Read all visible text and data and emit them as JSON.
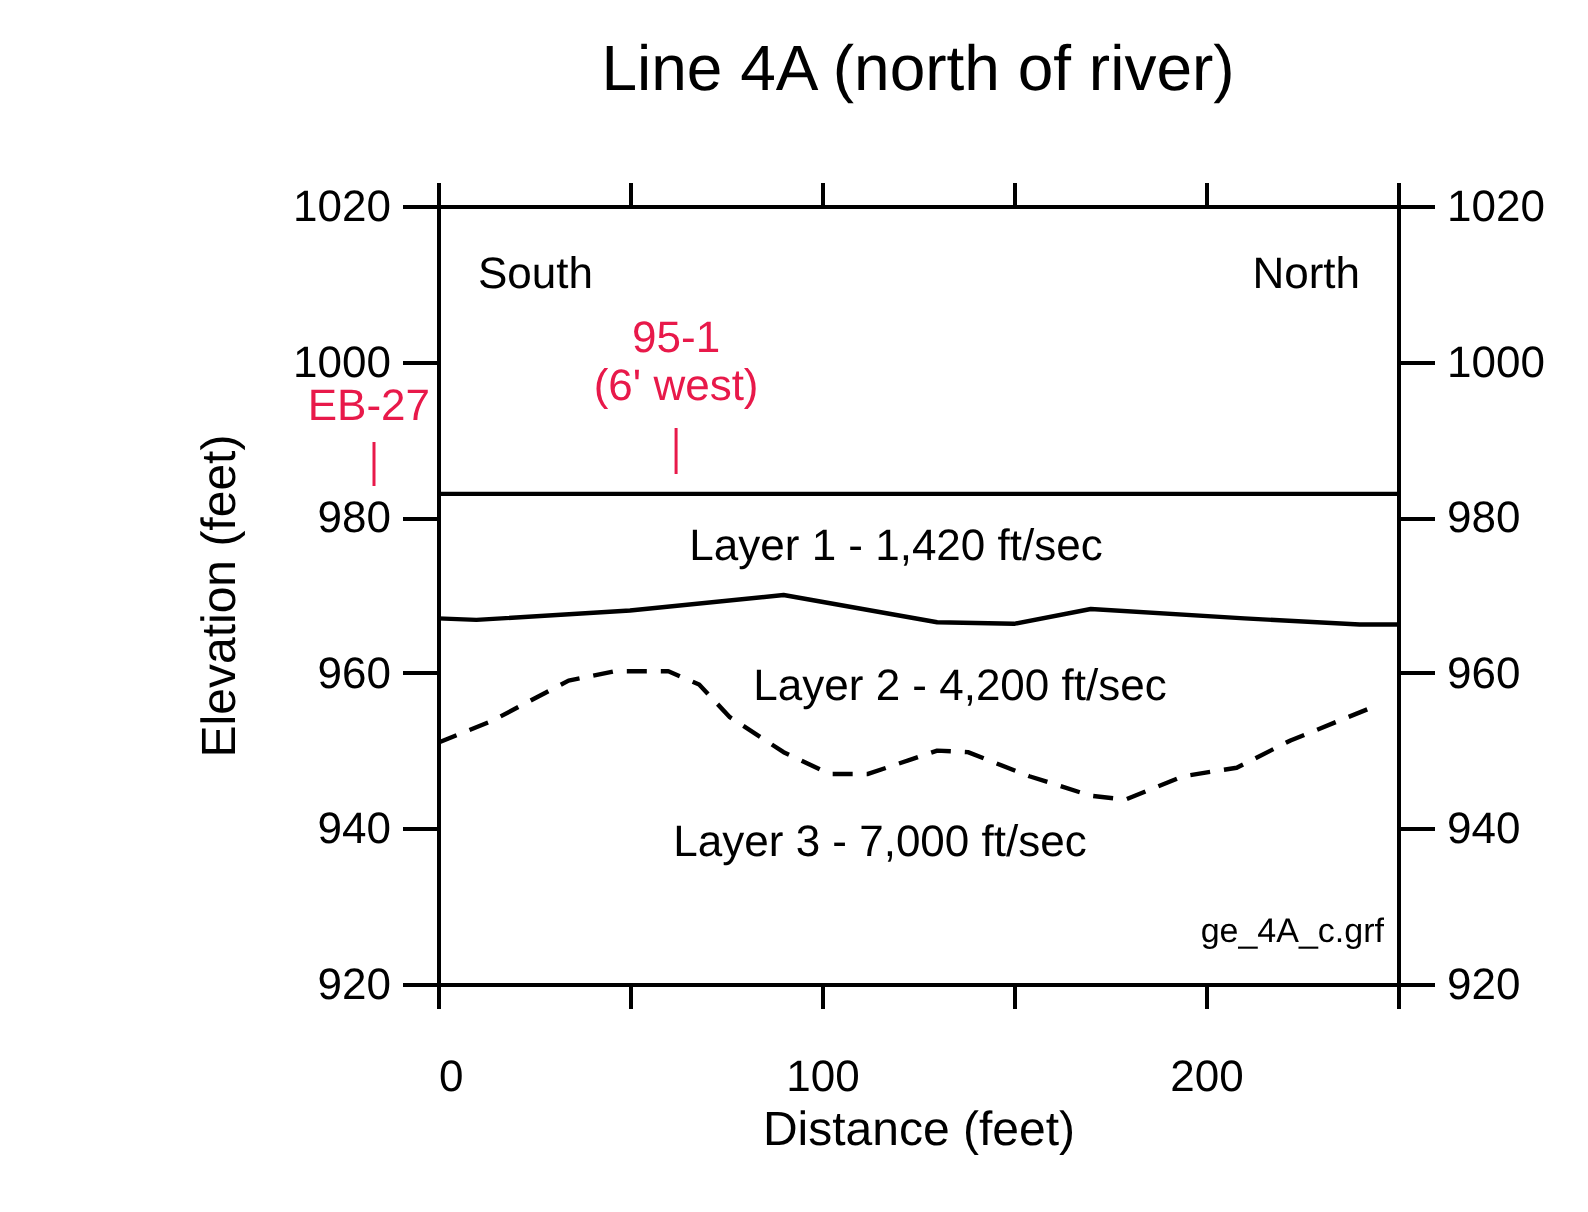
{
  "chart_data": {
    "type": "line",
    "title": "Line 4A (north of river)",
    "xlabel": "Distance (feet)",
    "ylabel": "Elevation (feet)",
    "series": [
      {
        "color": "#000000",
        "line_style": "solid",
        "x": [
          0,
          250
        ],
        "values": [
          983,
          983
        ]
      },
      {
        "color": "#000000",
        "line_style": "solid",
        "x": [
          0,
          10,
          50,
          90,
          130,
          150,
          170,
          210,
          240,
          250
        ],
        "values": [
          967,
          966.8,
          968,
          970,
          966.5,
          966.3,
          968.2,
          967,
          966.2,
          966.2
        ]
      },
      {
        "color": "#000000",
        "line_style": "dashed",
        "x": [
          0,
          14,
          34,
          46,
          60,
          68,
          76,
          90,
          102,
          112,
          130,
          138,
          154,
          170,
          179,
          194,
          208,
          222,
          242
        ],
        "values": [
          951,
          953.8,
          959,
          960.2,
          960.2,
          958.5,
          954.3,
          949.8,
          947,
          947,
          950,
          949.8,
          946.7,
          944.2,
          943.7,
          946.7,
          947.8,
          951.3,
          955.3
        ]
      }
    ],
    "xlim": [
      0,
      250
    ],
    "xticks": [
      0,
      {
        "value": 50,
        "label": null
      },
      100,
      {
        "value": 150,
        "label": null
      },
      200,
      {
        "value": 250,
        "label": null
      }
    ],
    "ylim": [
      920,
      1020
    ],
    "yticks": [
      920,
      940,
      960,
      980,
      1000,
      1020
    ],
    "y2lim": [
      920,
      1020
    ],
    "y2ticks": [
      920,
      940,
      960,
      980,
      1000,
      1020
    ],
    "marker": "none",
    "annotations": [
      "South",
      "North",
      "EB-27",
      "95-1\n(6' west)",
      "Layer 1 - 1,420 ft/sec",
      "Layer 2 - 4,200 ft/sec",
      "Layer 3 - 7,000 ft/sec",
      "ge_4A_c.grf"
    ]
  }
}
